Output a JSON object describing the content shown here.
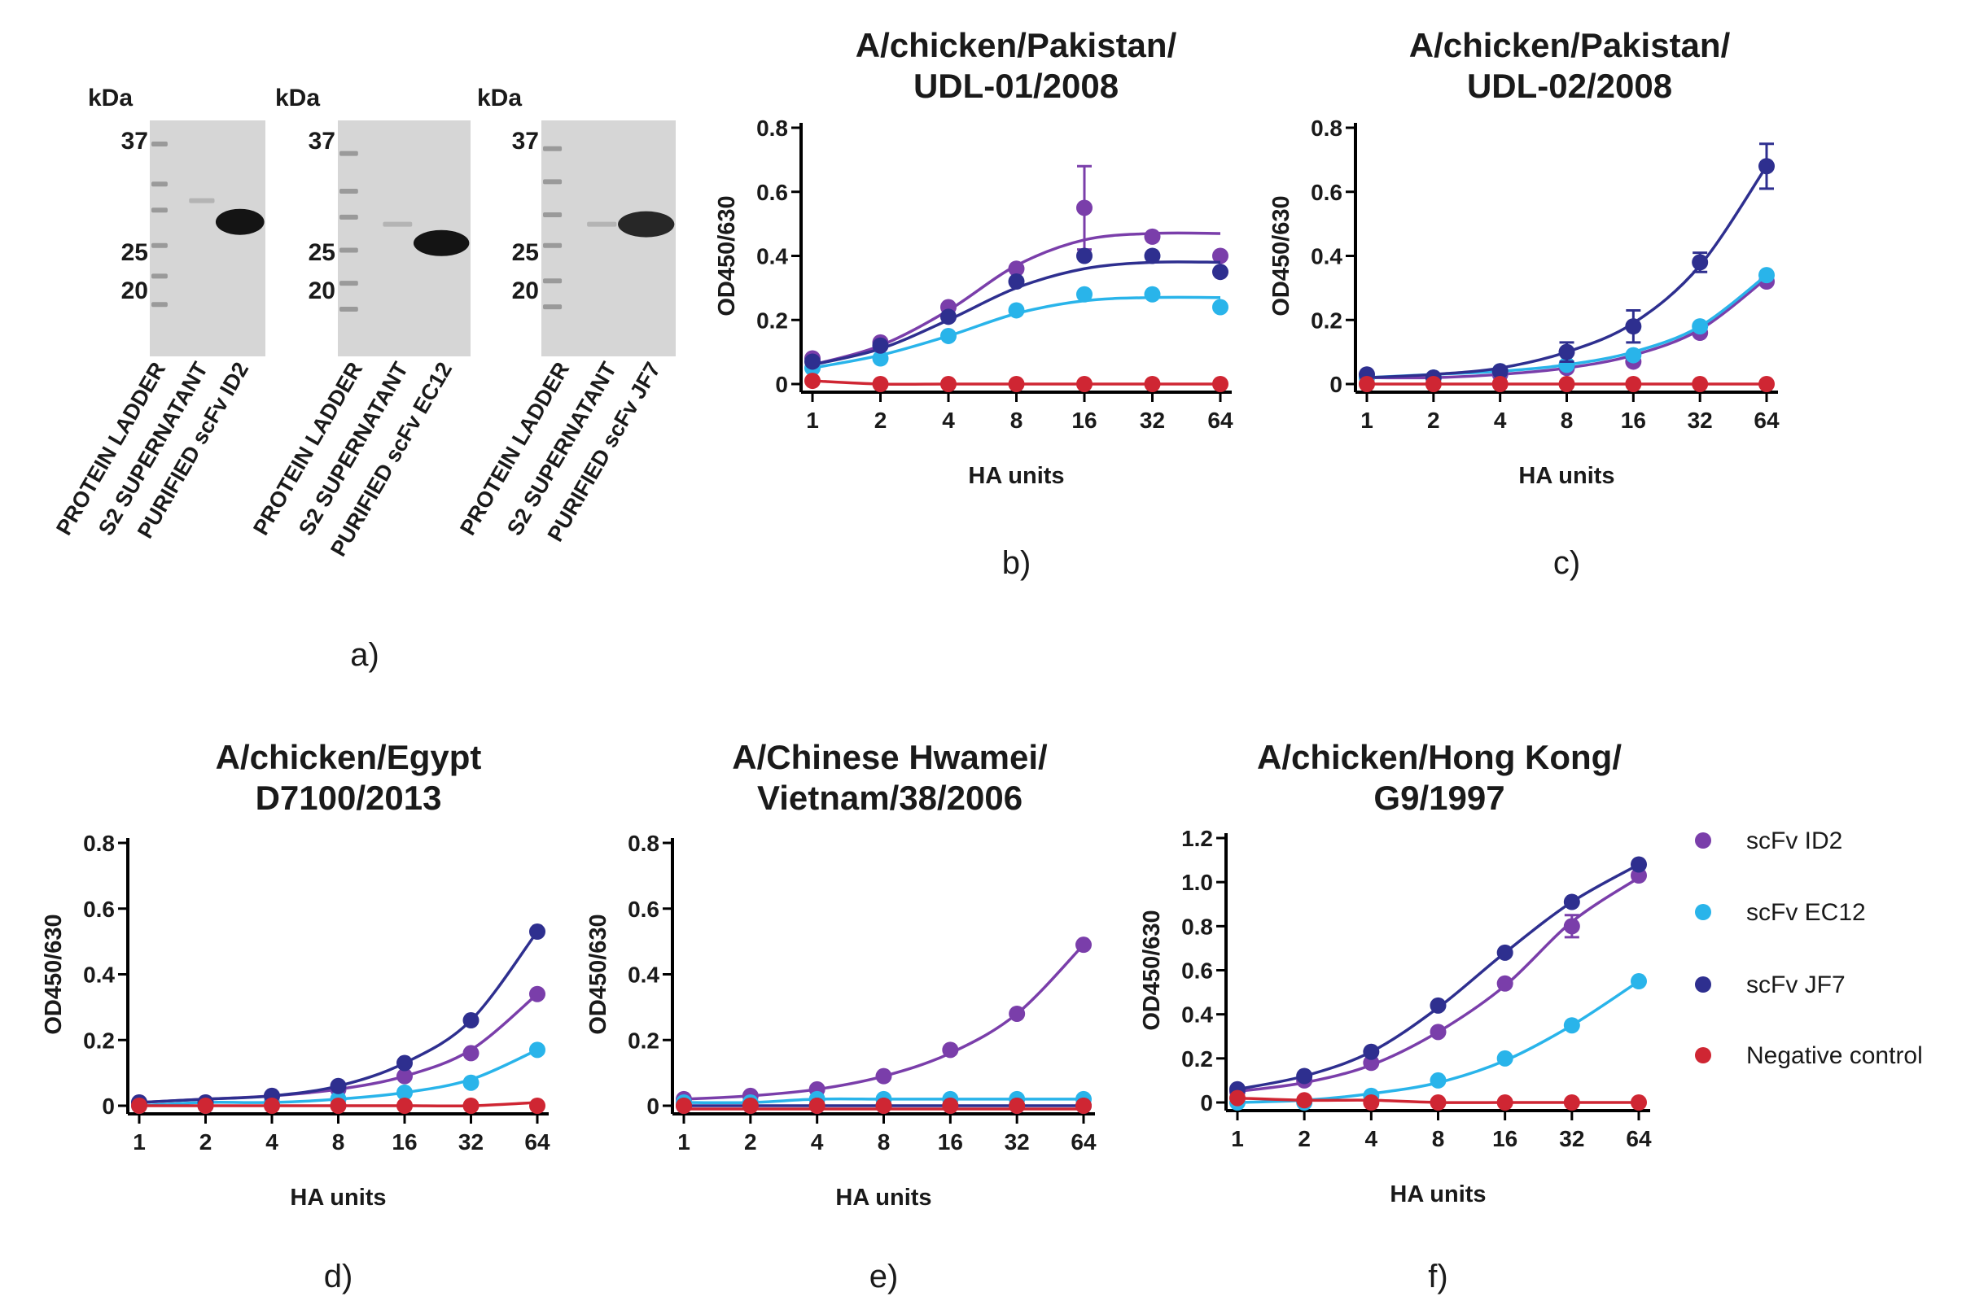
{
  "colors": {
    "scfv_id2": "#7a3eaa",
    "scfv_ec12": "#29b4ea",
    "scfv_jf7": "#2e2f8f",
    "negative_control": "#cf2633"
  },
  "legend": [
    {
      "label": "scFv ID2",
      "color": "#7a3eaa"
    },
    {
      "label": "scFv EC12",
      "color": "#29b4ea"
    },
    {
      "label": "scFv JF7",
      "color": "#2e2f8f"
    },
    {
      "label": "Negative control",
      "color": "#cf2633"
    }
  ],
  "gels": {
    "panel_label": "a)",
    "unit": "kDa",
    "markers": [
      {
        "kda": "37",
        "level": 0.1
      },
      {
        "kda": "25",
        "level": 0.53
      },
      {
        "kda": "20",
        "level": 0.66
      }
    ],
    "lanes": [
      {
        "lane_labels": [
          "PROTEIN LADDER",
          "S2 SUPERNATANT",
          "PURIFIED scFv ID2"
        ],
        "ladder_levels": [
          0.1,
          0.27,
          0.38,
          0.53,
          0.66,
          0.78
        ],
        "supernatant_band_level": 0.34,
        "purified_band_level": 0.43,
        "purified_band_strength": 1.0
      },
      {
        "lane_labels": [
          "PROTEIN LADDER",
          "S2 SUPERNATANT",
          "PURIFIED scFv EC12"
        ],
        "ladder_levels": [
          0.14,
          0.3,
          0.41,
          0.55,
          0.69,
          0.8
        ],
        "supernatant_band_level": 0.44,
        "purified_band_level": 0.52,
        "purified_band_strength": 1.0
      },
      {
        "lane_labels": [
          "PROTEIN LADDER",
          "S2 SUPERNATANT",
          "PURIFIED scFv JF7"
        ],
        "ladder_levels": [
          0.12,
          0.26,
          0.4,
          0.53,
          0.68,
          0.79
        ],
        "supernatant_band_level": 0.44,
        "purified_band_level": 0.44,
        "purified_band_strength": 0.9
      }
    ]
  },
  "chart_data": [
    {
      "type": "scatter",
      "panel_label": "b)",
      "title": [
        "A/chicken/Pakistan/",
        "UDL-01/2008"
      ],
      "xlabel": "HA units",
      "ylabel": "OD450/630",
      "x_scale": "log2",
      "x": [
        1,
        2,
        4,
        8,
        16,
        32,
        64
      ],
      "x_ticks": [
        "1",
        "2",
        "4",
        "8",
        "16",
        "32",
        "64"
      ],
      "ylim": [
        0,
        0.8
      ],
      "y_ticks": [
        "0",
        "0.2",
        "0.4",
        "0.6",
        "0.8"
      ],
      "series": [
        {
          "name": "scFv ID2",
          "values": [
            0.08,
            0.13,
            0.24,
            0.36,
            0.55,
            0.46,
            0.4
          ],
          "errors": [
            0,
            0,
            0,
            0,
            0.13,
            0,
            0
          ],
          "fit": [
            0.06,
            0.12,
            0.23,
            0.37,
            0.45,
            0.47,
            0.47
          ]
        },
        {
          "name": "scFv EC12",
          "values": [
            0.05,
            0.08,
            0.15,
            0.23,
            0.28,
            0.28,
            0.24
          ],
          "errors": [
            0,
            0,
            0,
            0,
            0,
            0,
            0
          ],
          "fit": [
            0.05,
            0.09,
            0.15,
            0.22,
            0.26,
            0.27,
            0.27
          ]
        },
        {
          "name": "scFv JF7",
          "values": [
            0.07,
            0.12,
            0.21,
            0.32,
            0.4,
            0.4,
            0.35
          ],
          "errors": [
            0,
            0,
            0,
            0,
            0,
            0,
            0
          ],
          "fit": [
            0.06,
            0.11,
            0.2,
            0.3,
            0.36,
            0.38,
            0.38
          ]
        },
        {
          "name": "Negative control",
          "values": [
            0.01,
            0.0,
            0.0,
            0.0,
            0.0,
            0.0,
            0.0
          ],
          "errors": [
            0,
            0,
            0,
            0,
            0,
            0,
            0
          ],
          "fit": [
            0.01,
            0.0,
            0.0,
            0.0,
            0.0,
            0.0,
            0.0
          ]
        }
      ]
    },
    {
      "type": "scatter",
      "panel_label": "c)",
      "title": [
        "A/chicken/Pakistan/",
        "UDL-02/2008"
      ],
      "xlabel": "HA units",
      "ylabel": "OD450/630",
      "x_scale": "log2",
      "x": [
        1,
        2,
        4,
        8,
        16,
        32,
        64
      ],
      "x_ticks": [
        "1",
        "2",
        "4",
        "8",
        "16",
        "32",
        "64"
      ],
      "ylim": [
        0,
        0.8
      ],
      "y_ticks": [
        "0",
        "0.2",
        "0.4",
        "0.6",
        "0.8"
      ],
      "series": [
        {
          "name": "scFv ID2",
          "values": [
            0.02,
            0.02,
            0.03,
            0.05,
            0.07,
            0.16,
            0.32
          ],
          "errors": [
            0,
            0,
            0,
            0,
            0,
            0,
            0
          ],
          "fit": [
            0.02,
            0.02,
            0.03,
            0.05,
            0.09,
            0.17,
            0.33
          ]
        },
        {
          "name": "scFv EC12",
          "values": [
            0.02,
            0.02,
            0.04,
            0.06,
            0.09,
            0.18,
            0.34
          ],
          "errors": [
            0,
            0,
            0,
            0,
            0,
            0,
            0
          ],
          "fit": [
            0.02,
            0.03,
            0.04,
            0.06,
            0.1,
            0.18,
            0.34
          ]
        },
        {
          "name": "scFv JF7",
          "values": [
            0.03,
            0.02,
            0.04,
            0.1,
            0.18,
            0.38,
            0.68
          ],
          "errors": [
            0,
            0,
            0,
            0.03,
            0.05,
            0.03,
            0.07
          ],
          "fit": [
            0.02,
            0.03,
            0.05,
            0.1,
            0.19,
            0.37,
            0.68
          ]
        },
        {
          "name": "Negative control",
          "values": [
            0.0,
            0.0,
            0.0,
            0.0,
            0.0,
            0.0,
            0.0
          ],
          "errors": [
            0,
            0,
            0,
            0,
            0,
            0,
            0
          ],
          "fit": [
            0.0,
            0.0,
            0.0,
            0.0,
            0.0,
            0.0,
            0.0
          ]
        }
      ]
    },
    {
      "type": "scatter",
      "panel_label": "d)",
      "title": [
        "A/chicken/Egypt",
        "D7100/2013"
      ],
      "xlabel": "HA units",
      "ylabel": "OD450/630",
      "x_scale": "log2",
      "x": [
        1,
        2,
        4,
        8,
        16,
        32,
        64
      ],
      "x_ticks": [
        "1",
        "2",
        "4",
        "8",
        "16",
        "32",
        "64"
      ],
      "ylim": [
        0,
        0.8
      ],
      "y_ticks": [
        "0",
        "0.2",
        "0.4",
        "0.6",
        "0.8"
      ],
      "series": [
        {
          "name": "scFv ID2",
          "values": [
            0.01,
            0.01,
            0.03,
            0.05,
            0.09,
            0.16,
            0.34
          ],
          "errors": [
            0,
            0,
            0,
            0,
            0,
            0,
            0
          ],
          "fit": [
            0.01,
            0.02,
            0.03,
            0.05,
            0.09,
            0.17,
            0.34
          ]
        },
        {
          "name": "scFv EC12",
          "values": [
            0.0,
            0.0,
            0.01,
            0.02,
            0.04,
            0.07,
            0.17
          ],
          "errors": [
            0,
            0,
            0,
            0,
            0,
            0,
            0
          ],
          "fit": [
            0.0,
            0.01,
            0.01,
            0.02,
            0.04,
            0.08,
            0.17
          ]
        },
        {
          "name": "scFv JF7",
          "values": [
            0.01,
            0.01,
            0.03,
            0.06,
            0.13,
            0.26,
            0.53
          ],
          "errors": [
            0,
            0,
            0,
            0,
            0,
            0,
            0
          ],
          "fit": [
            0.01,
            0.02,
            0.03,
            0.06,
            0.13,
            0.26,
            0.53
          ]
        },
        {
          "name": "Negative control",
          "values": [
            0.0,
            0.0,
            0.0,
            0.0,
            0.0,
            0.0,
            0.0
          ],
          "errors": [
            0,
            0,
            0,
            0,
            0,
            0,
            0
          ],
          "fit": [
            0.0,
            0.0,
            0.0,
            0.0,
            0.0,
            0.0,
            0.01
          ]
        }
      ]
    },
    {
      "type": "scatter",
      "panel_label": "e)",
      "title": [
        "A/Chinese Hwamei/",
        "Vietnam/38/2006"
      ],
      "xlabel": "HA units",
      "ylabel": "OD450/630",
      "x_scale": "log2",
      "x": [
        1,
        2,
        4,
        8,
        16,
        32,
        64
      ],
      "x_ticks": [
        "1",
        "2",
        "4",
        "8",
        "16",
        "32",
        "64"
      ],
      "ylim": [
        0,
        0.8
      ],
      "y_ticks": [
        "0",
        "0.2",
        "0.4",
        "0.6",
        "0.8"
      ],
      "series": [
        {
          "name": "scFv ID2",
          "values": [
            0.02,
            0.03,
            0.05,
            0.09,
            0.17,
            0.28,
            0.49
          ],
          "errors": [
            0,
            0,
            0,
            0,
            0,
            0,
            0
          ],
          "fit": [
            0.02,
            0.03,
            0.05,
            0.09,
            0.16,
            0.28,
            0.49
          ]
        },
        {
          "name": "scFv EC12",
          "values": [
            0.01,
            0.01,
            0.02,
            0.02,
            0.02,
            0.02,
            0.02
          ],
          "errors": [
            0,
            0,
            0,
            0,
            0,
            0,
            0
          ],
          "fit": [
            0.01,
            0.01,
            0.02,
            0.02,
            0.02,
            0.02,
            0.02
          ]
        },
        {
          "name": "scFv JF7",
          "values": [
            0.0,
            0.0,
            0.0,
            0.0,
            0.0,
            0.0,
            0.0
          ],
          "errors": [
            0,
            0,
            0,
            0,
            0,
            0,
            0
          ],
          "fit": [
            0.0,
            0.0,
            0.0,
            0.0,
            0.0,
            0.0,
            0.0
          ]
        },
        {
          "name": "Negative control",
          "values": [
            0.0,
            0.0,
            0.0,
            0.0,
            0.0,
            0.0,
            0.0
          ],
          "errors": [
            0,
            0,
            0,
            0,
            0,
            0,
            0
          ],
          "fit": [
            -0.01,
            -0.01,
            -0.01,
            -0.01,
            -0.01,
            -0.01,
            -0.01
          ]
        }
      ]
    },
    {
      "type": "scatter",
      "panel_label": "f)",
      "title": [
        "A/chicken/Hong Kong/",
        "G9/1997"
      ],
      "xlabel": "HA units",
      "ylabel": "OD450/630",
      "x_scale": "log2",
      "x": [
        1,
        2,
        4,
        8,
        16,
        32,
        64
      ],
      "x_ticks": [
        "1",
        "2",
        "4",
        "8",
        "16",
        "32",
        "64"
      ],
      "ylim": [
        0,
        1.2
      ],
      "y_ticks": [
        "0",
        "0.2",
        "0.4",
        "0.6",
        "0.8",
        "1.0",
        "1.2"
      ],
      "series": [
        {
          "name": "scFv ID2",
          "values": [
            0.05,
            0.1,
            0.18,
            0.32,
            0.54,
            0.8,
            1.03
          ],
          "errors": [
            0,
            0,
            0,
            0,
            0,
            0.05,
            0
          ],
          "fit": [
            0.05,
            0.09,
            0.17,
            0.32,
            0.53,
            0.82,
            1.02
          ]
        },
        {
          "name": "scFv EC12",
          "values": [
            0.0,
            0.0,
            0.03,
            0.1,
            0.2,
            0.35,
            0.55
          ],
          "errors": [
            0,
            0,
            0,
            0,
            0,
            0,
            0
          ],
          "fit": [
            0.0,
            0.01,
            0.04,
            0.09,
            0.19,
            0.35,
            0.55
          ]
        },
        {
          "name": "scFv JF7",
          "values": [
            0.06,
            0.12,
            0.23,
            0.44,
            0.68,
            0.91,
            1.08
          ],
          "errors": [
            0,
            0,
            0,
            0,
            0,
            0,
            0
          ],
          "fit": [
            0.06,
            0.12,
            0.23,
            0.43,
            0.68,
            0.91,
            1.08
          ]
        },
        {
          "name": "Negative control",
          "values": [
            0.02,
            0.01,
            0.0,
            0.0,
            0.0,
            0.0,
            0.0
          ],
          "errors": [
            0,
            0,
            0,
            0,
            0,
            0,
            0
          ],
          "fit": [
            0.02,
            0.01,
            0.01,
            0.0,
            0.0,
            0.0,
            0.0
          ]
        }
      ]
    }
  ]
}
